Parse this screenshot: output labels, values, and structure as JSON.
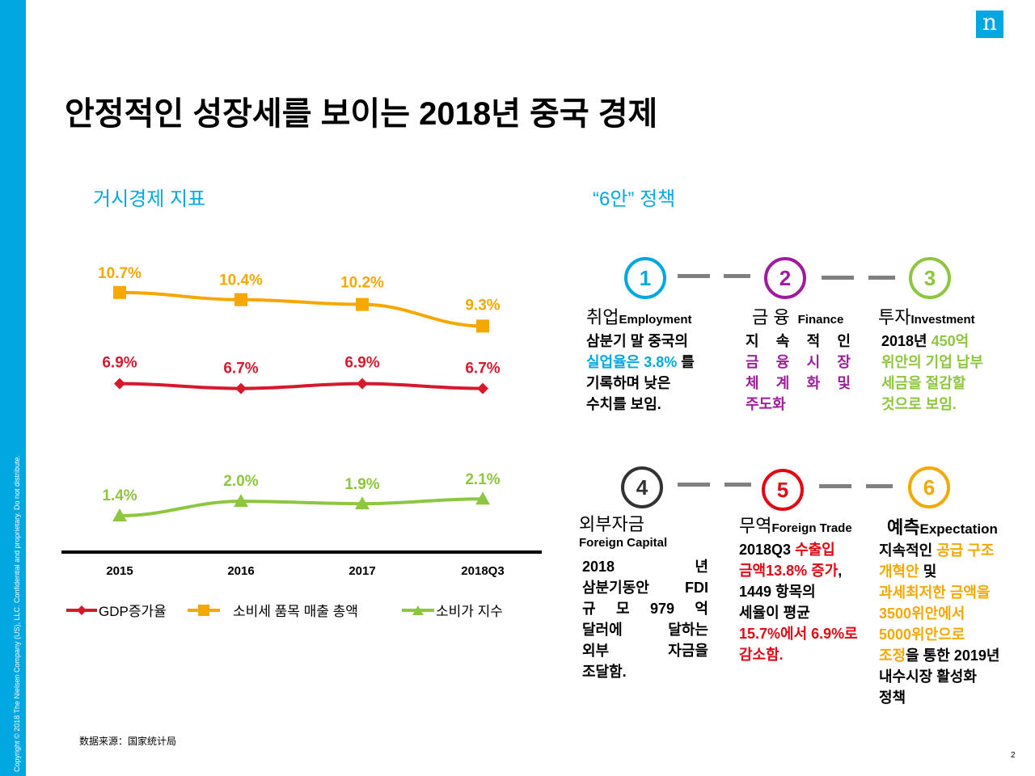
{
  "copyright": "Copyright © 2018 The Nielsen Company (US), LLC. Confidential and proprietary. Do not distribute.",
  "logo": "n",
  "title": "안정적인 성장세를 보이는 2018년 중국 경제",
  "left_section_title": "거시경제 지표",
  "right_section_title": "“6안” 정책",
  "chart_data": {
    "type": "line",
    "categories": [
      "2015",
      "2016",
      "2017",
      "2018Q3"
    ],
    "series": [
      {
        "name": "GDP증가율",
        "values": [
          6.9,
          6.7,
          6.9,
          6.7
        ],
        "labels": [
          "6.9%",
          "6.7%",
          "6.9%",
          "6.7%"
        ],
        "color": "#d7192e",
        "marker": "diamond"
      },
      {
        "name": "소비세 품목 매출 총액",
        "values": [
          10.7,
          10.4,
          10.2,
          9.3
        ],
        "labels": [
          "10.7%",
          "10.4%",
          "10.2%",
          "9.3%"
        ],
        "color": "#f6a800",
        "marker": "square"
      },
      {
        "name": "소비가 지수",
        "values": [
          1.4,
          2.0,
          1.9,
          2.1
        ],
        "labels": [
          "1.4%",
          "2.0%",
          "1.9%",
          "2.1%"
        ],
        "color": "#8dc63f",
        "marker": "triangle"
      }
    ],
    "legend_position": "bottom"
  },
  "policies": [
    {
      "num": "1",
      "color": "#00a7e1",
      "head": "취업",
      "head_en": "Employment",
      "body": [
        [
          [
            "삼분기 말 중국의",
            ""
          ]
        ],
        [
          [
            "실업율은 3.8%",
            "cyan"
          ],
          [
            " 를",
            ""
          ]
        ],
        [
          [
            "기록하며 낮은",
            ""
          ]
        ],
        [
          [
            "수치를 보임.",
            ""
          ]
        ]
      ]
    },
    {
      "num": "2",
      "color": "#a01c9d",
      "head": "금 융",
      "head_en": "Finance",
      "body": [
        [
          [
            "지 속 적 인",
            ""
          ]
        ],
        [
          [
            "금 융 시 장",
            "mag"
          ]
        ],
        [
          [
            "체 계 화 및",
            "mag"
          ]
        ],
        [
          [
            "주도화",
            "mag"
          ]
        ]
      ]
    },
    {
      "num": "3",
      "color": "#8dc63f",
      "head": "투자",
      "head_en": "Investment",
      "body": [
        [
          [
            "2018년 ",
            ""
          ],
          [
            "450억",
            "grn"
          ]
        ],
        [
          [
            "위안의 기업 납부",
            "grn"
          ]
        ],
        [
          [
            "세금을 절감할",
            "grn"
          ]
        ],
        [
          [
            "것으로 보임.",
            "grn"
          ]
        ]
      ]
    },
    {
      "num": "4",
      "color": "#333333",
      "head": "외부자금",
      "head_en": "Foreign Capital",
      "body": [
        [
          [
            "2018 년",
            ""
          ]
        ],
        [
          [
            "삼분기동안 FDI",
            ""
          ]
        ],
        [
          [
            "규 모 979 억",
            ""
          ]
        ],
        [
          [
            "달러에 달하는",
            ""
          ]
        ],
        [
          [
            "외부 자금을",
            ""
          ]
        ],
        [
          [
            "조달함.",
            ""
          ]
        ]
      ]
    },
    {
      "num": "5",
      "color": "#e30613",
      "head": "무역",
      "head_en": "Foreign Trade",
      "body": [
        [
          [
            "2018Q3 ",
            ""
          ],
          [
            "수출입",
            "red"
          ]
        ],
        [
          [
            "금액13.8% 증가",
            "red"
          ],
          [
            ",",
            ""
          ]
        ],
        [
          [
            "1449 항목의",
            ""
          ]
        ],
        [
          [
            "세율이 평균",
            ""
          ]
        ],
        [
          [
            "15.7%에서 6.9%로",
            "red"
          ]
        ],
        [
          [
            "감소함.",
            "red"
          ]
        ]
      ]
    },
    {
      "num": "6",
      "color": "#f6a800",
      "head": "예측",
      "head_en": "Expectation",
      "body": [
        [
          [
            "지속적인 ",
            ""
          ],
          [
            "공급 구조",
            "org"
          ]
        ],
        [
          [
            "개혁안",
            "org"
          ],
          [
            " 및",
            ""
          ]
        ],
        [
          [
            "과세최저한 금액을",
            "org"
          ]
        ],
        [
          [
            "3500위안에서",
            "org"
          ]
        ],
        [
          [
            "5000위안으로",
            "org"
          ]
        ],
        [
          [
            "조정",
            "org"
          ],
          [
            "을 통한 2019년",
            ""
          ]
        ],
        [
          [
            "내수시장 활성화",
            ""
          ]
        ],
        [
          [
            "정책",
            ""
          ]
        ]
      ]
    }
  ],
  "source": "数据来源：国家统计局",
  "page_number": "2"
}
